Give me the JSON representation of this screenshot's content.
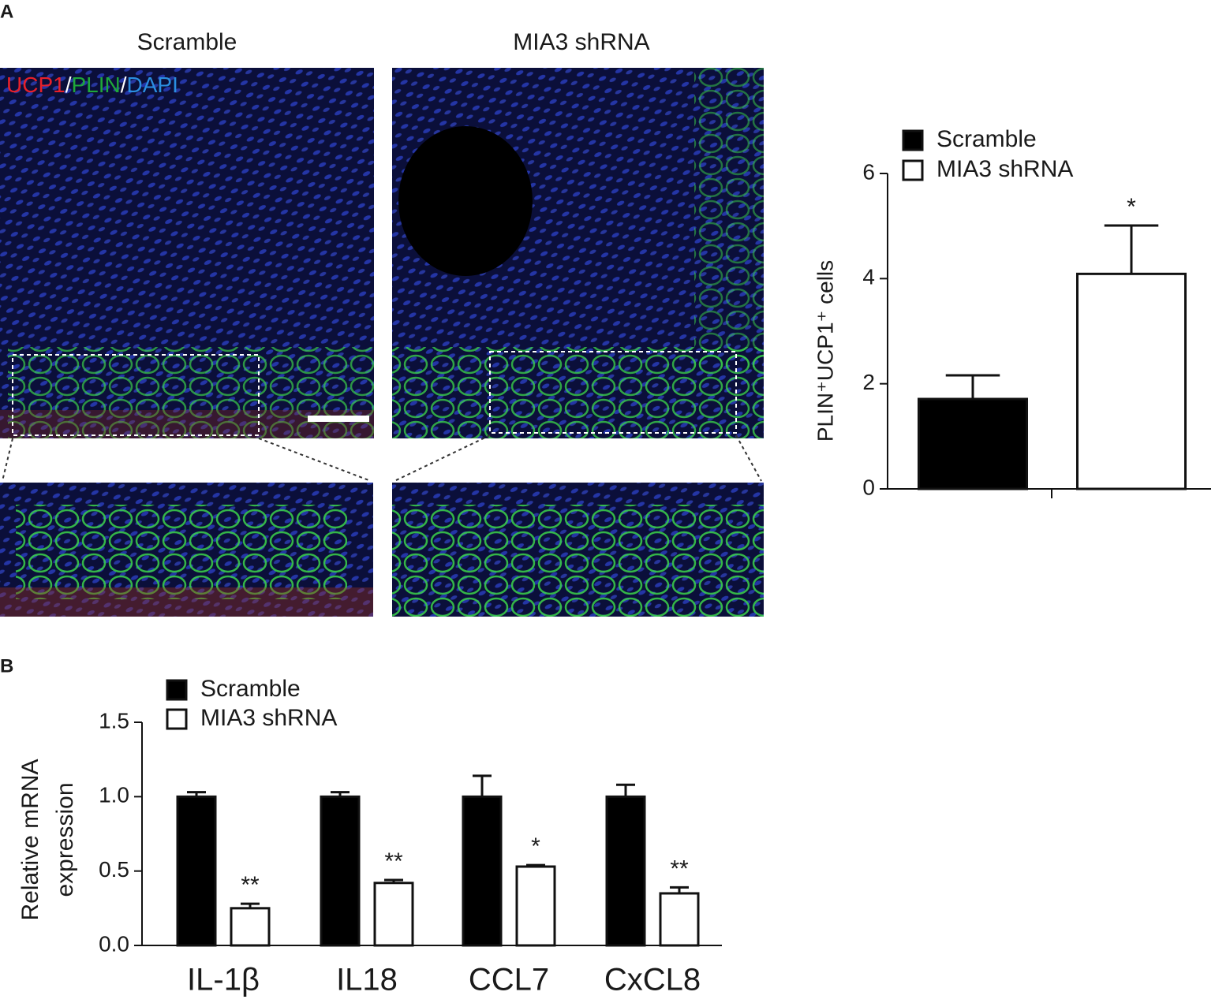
{
  "panel_labels": [
    "A",
    "B"
  ],
  "image_titles": [
    "Scramble",
    "MIA3 shRNA"
  ],
  "stain_label": [
    {
      "text": "UCP1",
      "color": "#e8202a"
    },
    {
      "text": "/",
      "color": "#ffffff"
    },
    {
      "text": "PLIN",
      "color": "#1fa83a"
    },
    {
      "text": "/",
      "color": "#ffffff"
    },
    {
      "text": "DAPI",
      "color": "#2a8ee0"
    }
  ],
  "chart_data": [
    {
      "type": "bar",
      "ylabel": "PLIN⁺UCP1⁺ cells",
      "categories": [
        null
      ],
      "series": [
        {
          "name": "Scramble",
          "color": "#000000",
          "values": [
            1.71
          ],
          "errors": [
            0.45
          ],
          "annotations": [
            null
          ]
        },
        {
          "name": "MIA3 shRNA",
          "color": "#ffffff",
          "values": [
            4.09
          ],
          "errors": [
            0.92
          ],
          "annotations": [
            "*"
          ]
        }
      ],
      "ylim": [
        0,
        6
      ],
      "yticks": [
        0,
        2,
        4,
        6
      ],
      "legend": "top-left"
    },
    {
      "type": "bar",
      "ylabel": [
        "Relative mRNA",
        "expression"
      ],
      "categories": [
        "IL-1β",
        "IL18",
        "CCL7",
        "CxCL8"
      ],
      "series": [
        {
          "name": "Scramble",
          "color": "#000000",
          "values": [
            1.0,
            1.0,
            1.0,
            1.0
          ],
          "errors": [
            0.03,
            0.03,
            0.14,
            0.08
          ],
          "annotations": [
            null,
            null,
            null,
            null
          ]
        },
        {
          "name": "MIA3 shRNA",
          "color": "#ffffff",
          "values": [
            0.25,
            0.42,
            0.53,
            0.35
          ],
          "errors": [
            0.03,
            0.02,
            0.01,
            0.04
          ],
          "annotations": [
            "**",
            "**",
            "*",
            "**"
          ]
        }
      ],
      "ylim": [
        0,
        1.5
      ],
      "yticks": [
        {
          "value": 0,
          "label": "0.0"
        },
        {
          "value": 0.5,
          "label": "0.5"
        },
        {
          "value": 1,
          "label": "1.0"
        },
        {
          "value": 1.5,
          "label": "1.5"
        }
      ],
      "legend": "top-left"
    }
  ]
}
